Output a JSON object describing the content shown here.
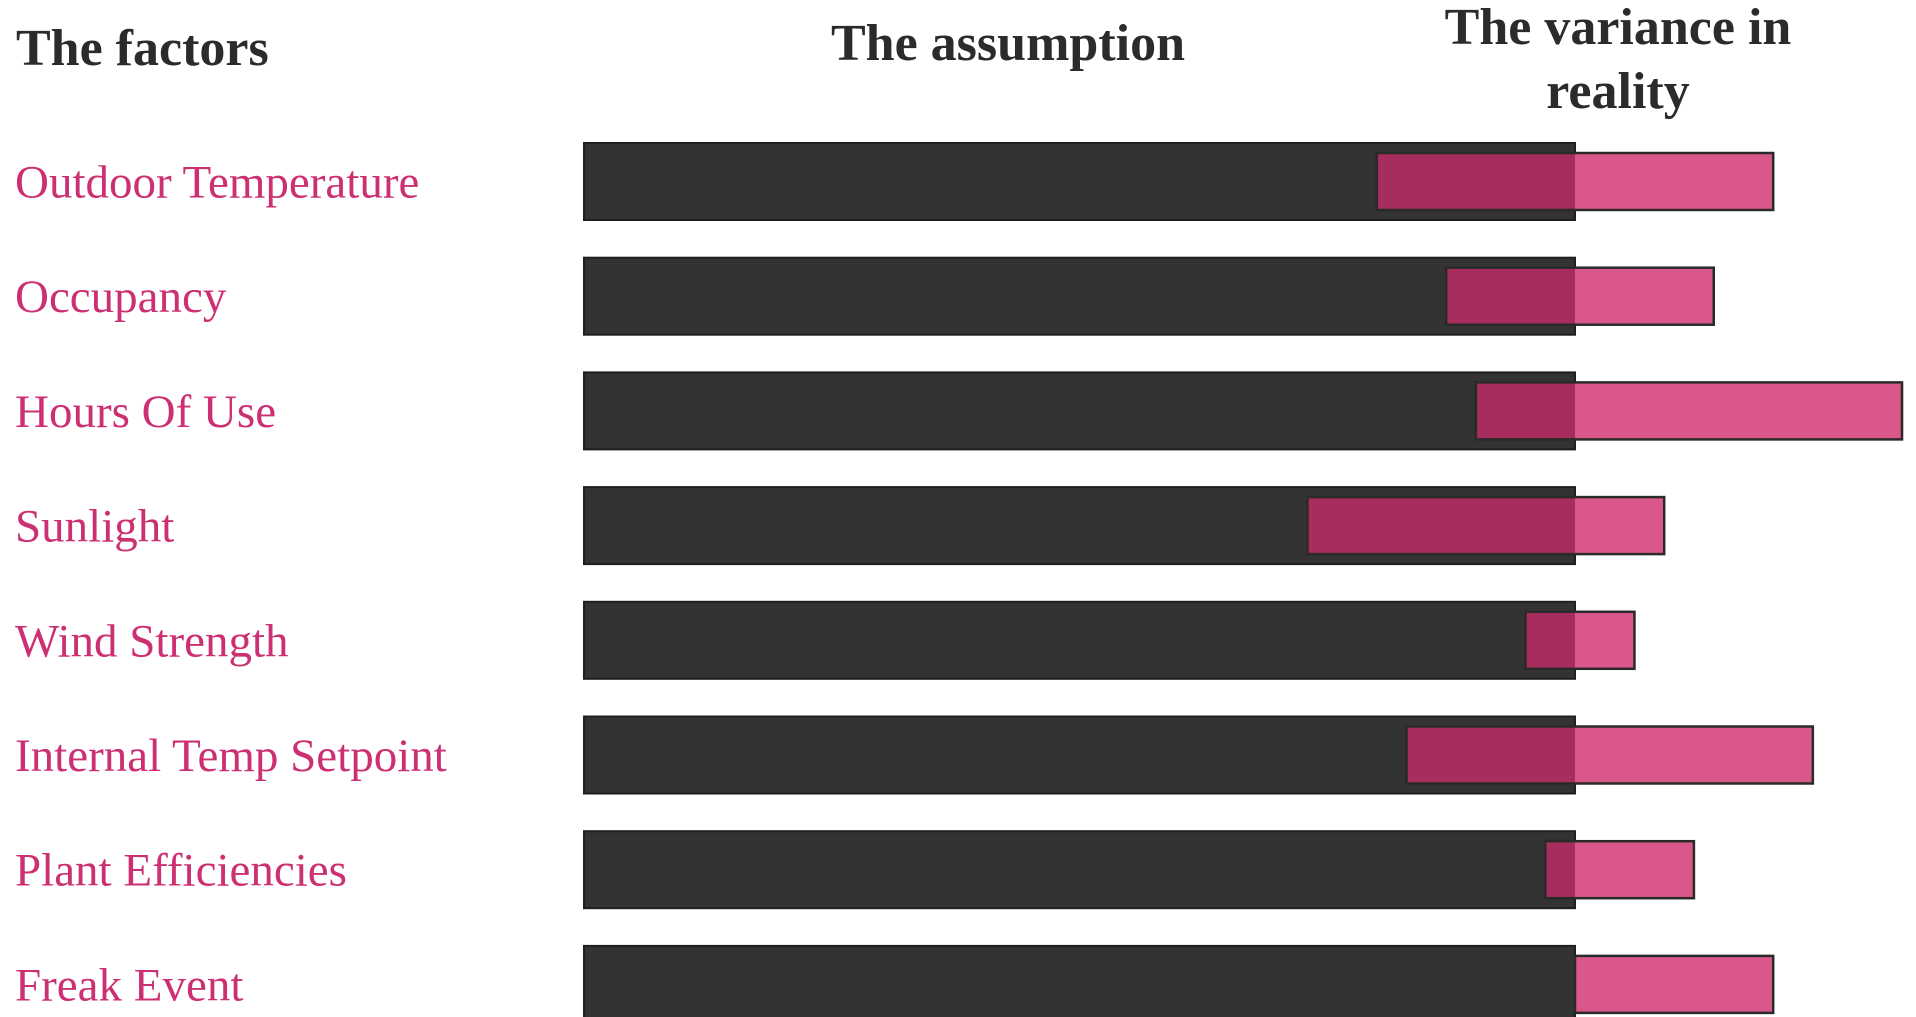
{
  "chart_data": {
    "type": "bar",
    "headers": {
      "factors": "The factors",
      "assumption": "The assumption",
      "variance_line1": "The variance in",
      "variance_line2": "reality"
    },
    "categories": [
      "Outdoor Temperature",
      "Occupancy",
      "Hours Of Use",
      "Sunlight",
      "Wind Strength",
      "Internal Temp Setpoint",
      "Plant Efficiencies",
      "Freak Event"
    ],
    "assumption": 1.0,
    "variance": [
      {
        "low": 0.8,
        "high": 1.2
      },
      {
        "low": 0.87,
        "high": 1.14
      },
      {
        "low": 0.9,
        "high": 1.33
      },
      {
        "low": 0.73,
        "high": 1.09
      },
      {
        "low": 0.95,
        "high": 1.06
      },
      {
        "low": 0.83,
        "high": 1.24
      },
      {
        "low": 0.97,
        "high": 1.12
      },
      {
        "low": 1.0,
        "high": 1.2
      }
    ],
    "colors": {
      "assumption": "#333333",
      "variance": "#d9578a",
      "overlap": "#a62d5d",
      "factor_text": "#cc2f72",
      "header_text": "#2b2b2b"
    },
    "grid": false,
    "legend": "none"
  }
}
